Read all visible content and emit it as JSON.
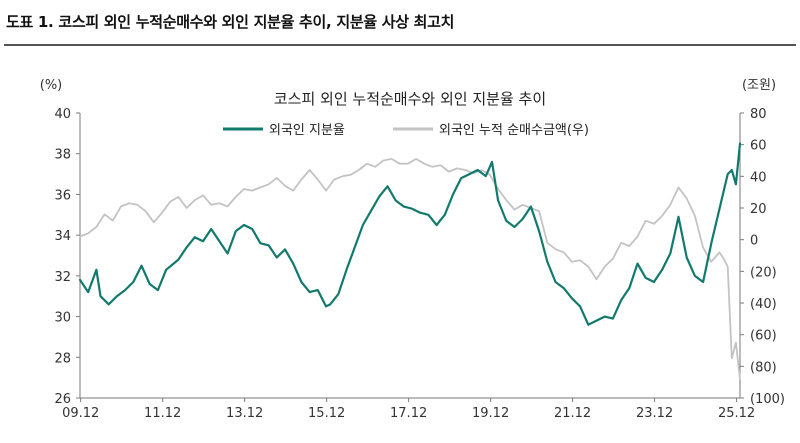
{
  "figure_title": "도표 1. 코스피 외인 누적순매수와 외인 지분율 추이, 지분율 사상 최고치",
  "colors": {
    "share_line": "#127a6c",
    "cumulative_line": "#c3c3c3",
    "axis": "#7a7a7a",
    "text": "#333333"
  },
  "chart_data": {
    "type": "line",
    "title": "코스피 외인 누적순매수와 외인 지분율 추이",
    "left_unit": "(%)",
    "right_unit": "(조원)",
    "ylim_left": [
      26,
      40
    ],
    "ylim_right": [
      -100,
      80
    ],
    "left_ticks": [
      "40",
      "38",
      "36",
      "34",
      "32",
      "30",
      "28",
      "26"
    ],
    "right_ticks": [
      "80",
      "60",
      "40",
      "20",
      "0",
      "(20)",
      "(40)",
      "(60)",
      "(80)",
      "(100)"
    ],
    "x_ticks": [
      "09.12",
      "11.12",
      "13.12",
      "15.12",
      "17.12",
      "19.12",
      "21.12",
      "23.12",
      "25.12"
    ],
    "xlim": [
      2009.9,
      2026.0
    ],
    "grid": false,
    "legend_position": "top-center",
    "series": [
      {
        "name": "외국인 지분율",
        "axis": "left",
        "color": "#127a6c",
        "x": [
          2009.9,
          2010.1,
          2010.3,
          2010.4,
          2010.6,
          2010.8,
          2011.0,
          2011.2,
          2011.4,
          2011.6,
          2011.8,
          2012.0,
          2012.3,
          2012.5,
          2012.7,
          2012.9,
          2013.1,
          2013.3,
          2013.5,
          2013.7,
          2013.9,
          2014.1,
          2014.3,
          2014.5,
          2014.7,
          2014.9,
          2015.1,
          2015.3,
          2015.5,
          2015.7,
          2015.9,
          2016.0,
          2016.2,
          2016.4,
          2016.6,
          2016.8,
          2017.0,
          2017.2,
          2017.4,
          2017.6,
          2017.8,
          2018.0,
          2018.2,
          2018.4,
          2018.6,
          2018.8,
          2019.0,
          2019.2,
          2019.4,
          2019.6,
          2019.8,
          2019.95,
          2020.1,
          2020.3,
          2020.5,
          2020.7,
          2020.9,
          2021.1,
          2021.3,
          2021.5,
          2021.7,
          2021.9,
          2022.1,
          2022.3,
          2022.5,
          2022.7,
          2022.9,
          2023.1,
          2023.3,
          2023.5,
          2023.7,
          2023.9,
          2024.1,
          2024.3,
          2024.5,
          2024.7,
          2024.9,
          2025.1,
          2025.3,
          2025.5,
          2025.7,
          2025.8,
          2025.9,
          2026.0
        ],
        "values": [
          31.8,
          31.2,
          32.3,
          31.0,
          30.6,
          31.0,
          31.3,
          31.7,
          32.5,
          31.6,
          31.3,
          32.3,
          32.8,
          33.4,
          33.9,
          33.7,
          34.3,
          33.7,
          33.1,
          34.2,
          34.5,
          34.3,
          33.6,
          33.5,
          32.9,
          33.3,
          32.6,
          31.7,
          31.2,
          31.3,
          30.5,
          30.6,
          31.1,
          32.3,
          33.4,
          34.5,
          35.2,
          35.9,
          36.4,
          35.7,
          35.4,
          35.3,
          35.1,
          35.0,
          34.5,
          35.0,
          36.0,
          36.8,
          37.0,
          37.2,
          36.9,
          37.6,
          35.7,
          34.7,
          34.4,
          34.8,
          35.4,
          34.2,
          32.7,
          31.7,
          31.4,
          30.9,
          30.5,
          29.6,
          29.8,
          30.0,
          29.9,
          30.8,
          31.4,
          32.6,
          31.9,
          31.7,
          32.3,
          33.1,
          34.9,
          32.9,
          32.0,
          31.7,
          33.6,
          35.3,
          37.0,
          37.2,
          36.5,
          38.5
        ]
      },
      {
        "name": "외국인 누적 순매수금액(우)",
        "axis": "right",
        "color": "#c3c3c3",
        "x": [
          2009.9,
          2010.1,
          2010.3,
          2010.5,
          2010.7,
          2010.9,
          2011.1,
          2011.3,
          2011.5,
          2011.7,
          2011.9,
          2012.1,
          2012.3,
          2012.5,
          2012.7,
          2012.9,
          2013.1,
          2013.3,
          2013.5,
          2013.7,
          2013.9,
          2014.1,
          2014.3,
          2014.5,
          2014.7,
          2014.9,
          2015.1,
          2015.3,
          2015.5,
          2015.7,
          2015.9,
          2016.1,
          2016.3,
          2016.5,
          2016.7,
          2016.9,
          2017.1,
          2017.3,
          2017.5,
          2017.7,
          2017.9,
          2018.1,
          2018.3,
          2018.5,
          2018.7,
          2018.9,
          2019.1,
          2019.3,
          2019.5,
          2019.7,
          2019.9,
          2020.1,
          2020.3,
          2020.5,
          2020.7,
          2020.9,
          2021.1,
          2021.3,
          2021.5,
          2021.7,
          2021.9,
          2022.1,
          2022.3,
          2022.5,
          2022.7,
          2022.9,
          2023.1,
          2023.3,
          2023.5,
          2023.7,
          2023.9,
          2024.1,
          2024.3,
          2024.5,
          2024.7,
          2024.9,
          2025.1,
          2025.3,
          2025.5,
          2025.6,
          2025.7,
          2025.8,
          2025.9,
          2026.0
        ],
        "values": [
          2,
          4,
          8,
          16,
          12,
          21,
          23,
          22,
          18,
          11,
          17,
          24,
          27,
          20,
          25,
          28,
          22,
          23,
          21,
          27,
          32,
          31,
          33,
          35,
          39,
          34,
          31,
          38,
          44,
          38,
          31,
          38,
          40,
          41,
          44,
          48,
          46,
          50,
          51,
          48,
          48,
          51,
          48,
          46,
          47,
          43,
          45,
          44,
          42,
          44,
          41,
          32,
          25,
          19,
          22,
          20,
          18,
          -2,
          -6,
          -8,
          -14,
          -13,
          -17,
          -25,
          -17,
          -12,
          -2,
          -4,
          2,
          12,
          10,
          15,
          22,
          33,
          26,
          15,
          -5,
          -14,
          -8,
          -12,
          -17,
          -75,
          -65,
          -88
        ]
      }
    ]
  }
}
